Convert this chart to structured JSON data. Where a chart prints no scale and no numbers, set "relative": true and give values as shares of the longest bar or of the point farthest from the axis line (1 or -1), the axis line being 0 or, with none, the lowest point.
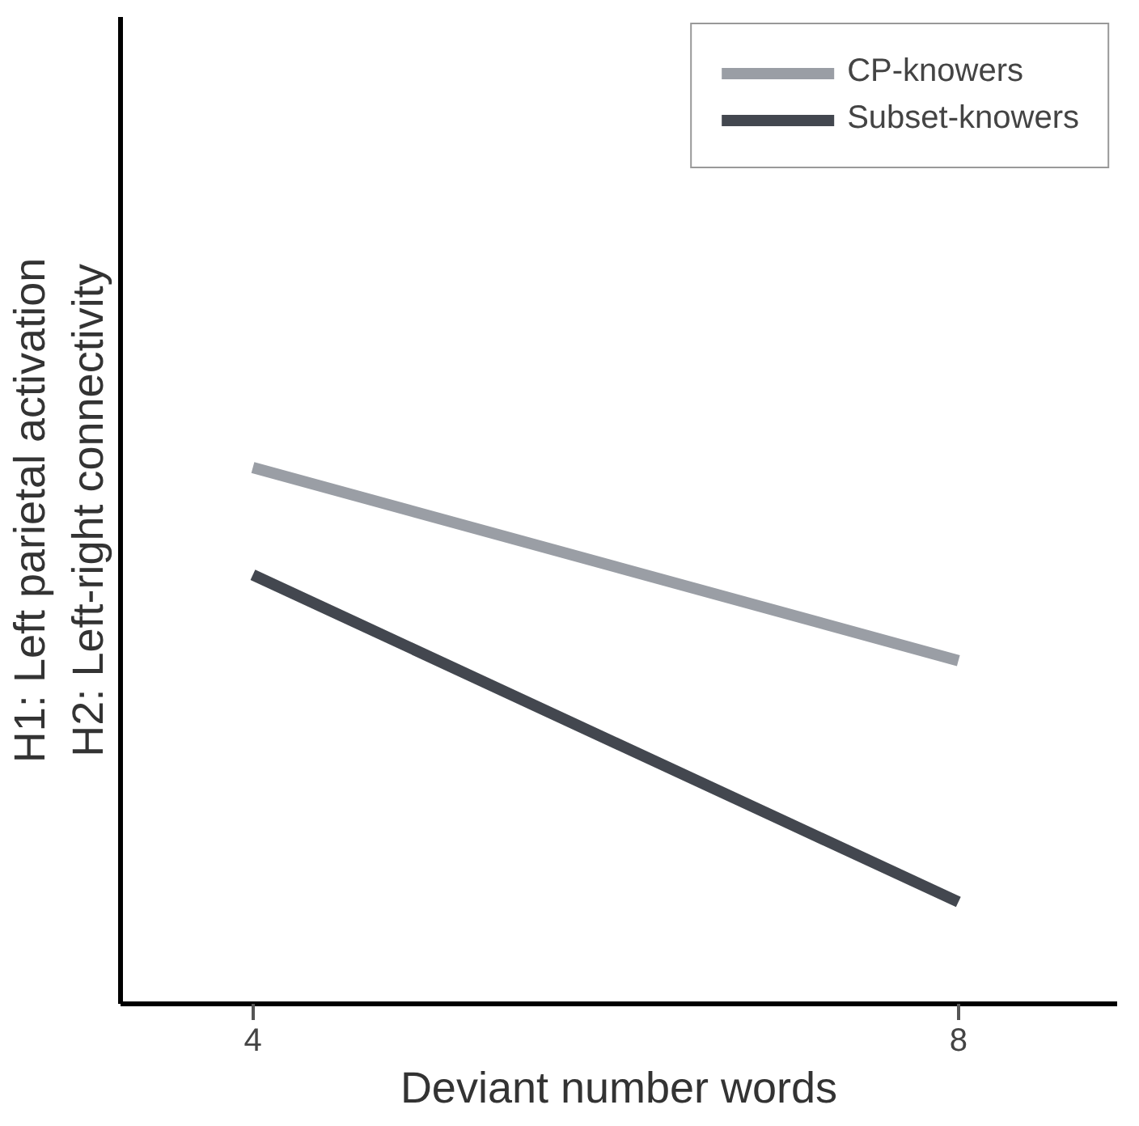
{
  "chart_data": {
    "type": "line",
    "relative": true,
    "xlabel": "Deviant number words",
    "ylabel": "H1: Left parietal activation\nH2: Left-right connectivity",
    "x": [
      4,
      8
    ],
    "xlim": [
      3.25,
      8.9
    ],
    "xticks": [
      4,
      8
    ],
    "series": [
      {
        "name": "CP-knowers",
        "color": "#9a9ea5",
        "values": [
          1,
          0.64
        ]
      },
      {
        "name": "Subset-knowers",
        "color": "#43474f",
        "values": [
          0.8,
          0.19
        ]
      }
    ],
    "legend": "top right",
    "grid": false,
    "marker": "none",
    "line_style": "solid"
  }
}
